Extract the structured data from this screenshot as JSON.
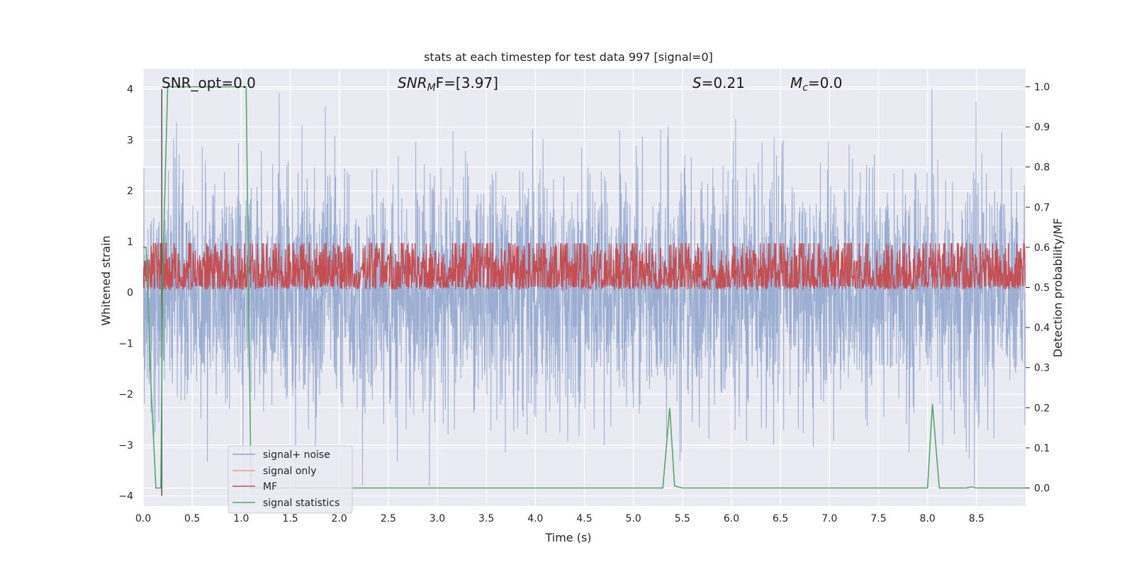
{
  "chart_data": {
    "type": "line",
    "title": "stats at each timestep for test data 997 [signal=0]",
    "xlabel": "Time (s)",
    "ylabel": "Whitened strain",
    "y2label": "Detection probability/MF",
    "xlim": [
      0.0,
      9.0
    ],
    "ylim": [
      -4.2,
      4.4
    ],
    "y2lim": [
      -0.045,
      1.045
    ],
    "xticks": [
      "0.0",
      "0.5",
      "1.0",
      "1.5",
      "2.0",
      "2.5",
      "3.0",
      "3.5",
      "4.0",
      "4.5",
      "5.0",
      "5.5",
      "6.0",
      "6.5",
      "7.0",
      "7.5",
      "8.0",
      "8.5"
    ],
    "yticks": [
      "4",
      "3",
      "2",
      "1",
      "0",
      "−1",
      "−2",
      "−3",
      "−4"
    ],
    "y2ticks": [
      "1.0",
      "0.9",
      "0.8",
      "0.7",
      "0.6",
      "0.5",
      "0.4",
      "0.3",
      "0.2",
      "0.1",
      "0.0"
    ],
    "grid": true,
    "legend_placement": "lower-left",
    "annotations": {
      "snr_opt": "SNR_opt=0.0",
      "snr_mf_main": "SNR",
      "snr_mf_sub": "M",
      "snr_mf_rest": "F=[3.97]",
      "s_stat_main": "S",
      "s_stat_rest": "=0.21",
      "mc_main": "M",
      "mc_sub": "c",
      "mc_rest": "=0.0"
    },
    "series": [
      {
        "name": "signal+ noise",
        "color": "#8da3cc",
        "noise_sigma": 1.0,
        "dt": 0.0025
      },
      {
        "name": "signal only",
        "color": "#eea07c",
        "values": []
      },
      {
        "name": "MF",
        "color": "#c44e52",
        "axis": "secondary",
        "baseline": 0.53,
        "amplitude": 0.05,
        "dt": 0.004
      },
      {
        "name": "signal statistics",
        "color": "#55a868",
        "axis": "secondary",
        "x": [
          0.0,
          0.03,
          0.08,
          0.13,
          0.18,
          0.2,
          0.25,
          1.05,
          1.07,
          1.1,
          1.2,
          1.5,
          2.0,
          3.0,
          4.0,
          5.0,
          5.3,
          5.37,
          5.42,
          5.5,
          6.0,
          7.0,
          8.0,
          8.05,
          8.12,
          8.3,
          8.4,
          8.45,
          8.5,
          9.0
        ],
        "y": [
          0.6,
          0.6,
          0.25,
          0.0,
          0.0,
          0.55,
          1.0,
          1.0,
          0.6,
          0.0,
          0.0,
          0.0,
          0.0,
          0.0,
          0.0,
          0.0,
          0.0,
          0.2,
          0.005,
          0.0,
          0.0,
          0.0,
          0.0,
          0.21,
          0.0,
          0.0,
          0.0,
          0.003,
          0.0,
          0.0
        ]
      }
    ],
    "marker_line": {
      "x": 0.19,
      "y_from": 4.0,
      "y_to": -4.0,
      "color": "#555555"
    }
  }
}
